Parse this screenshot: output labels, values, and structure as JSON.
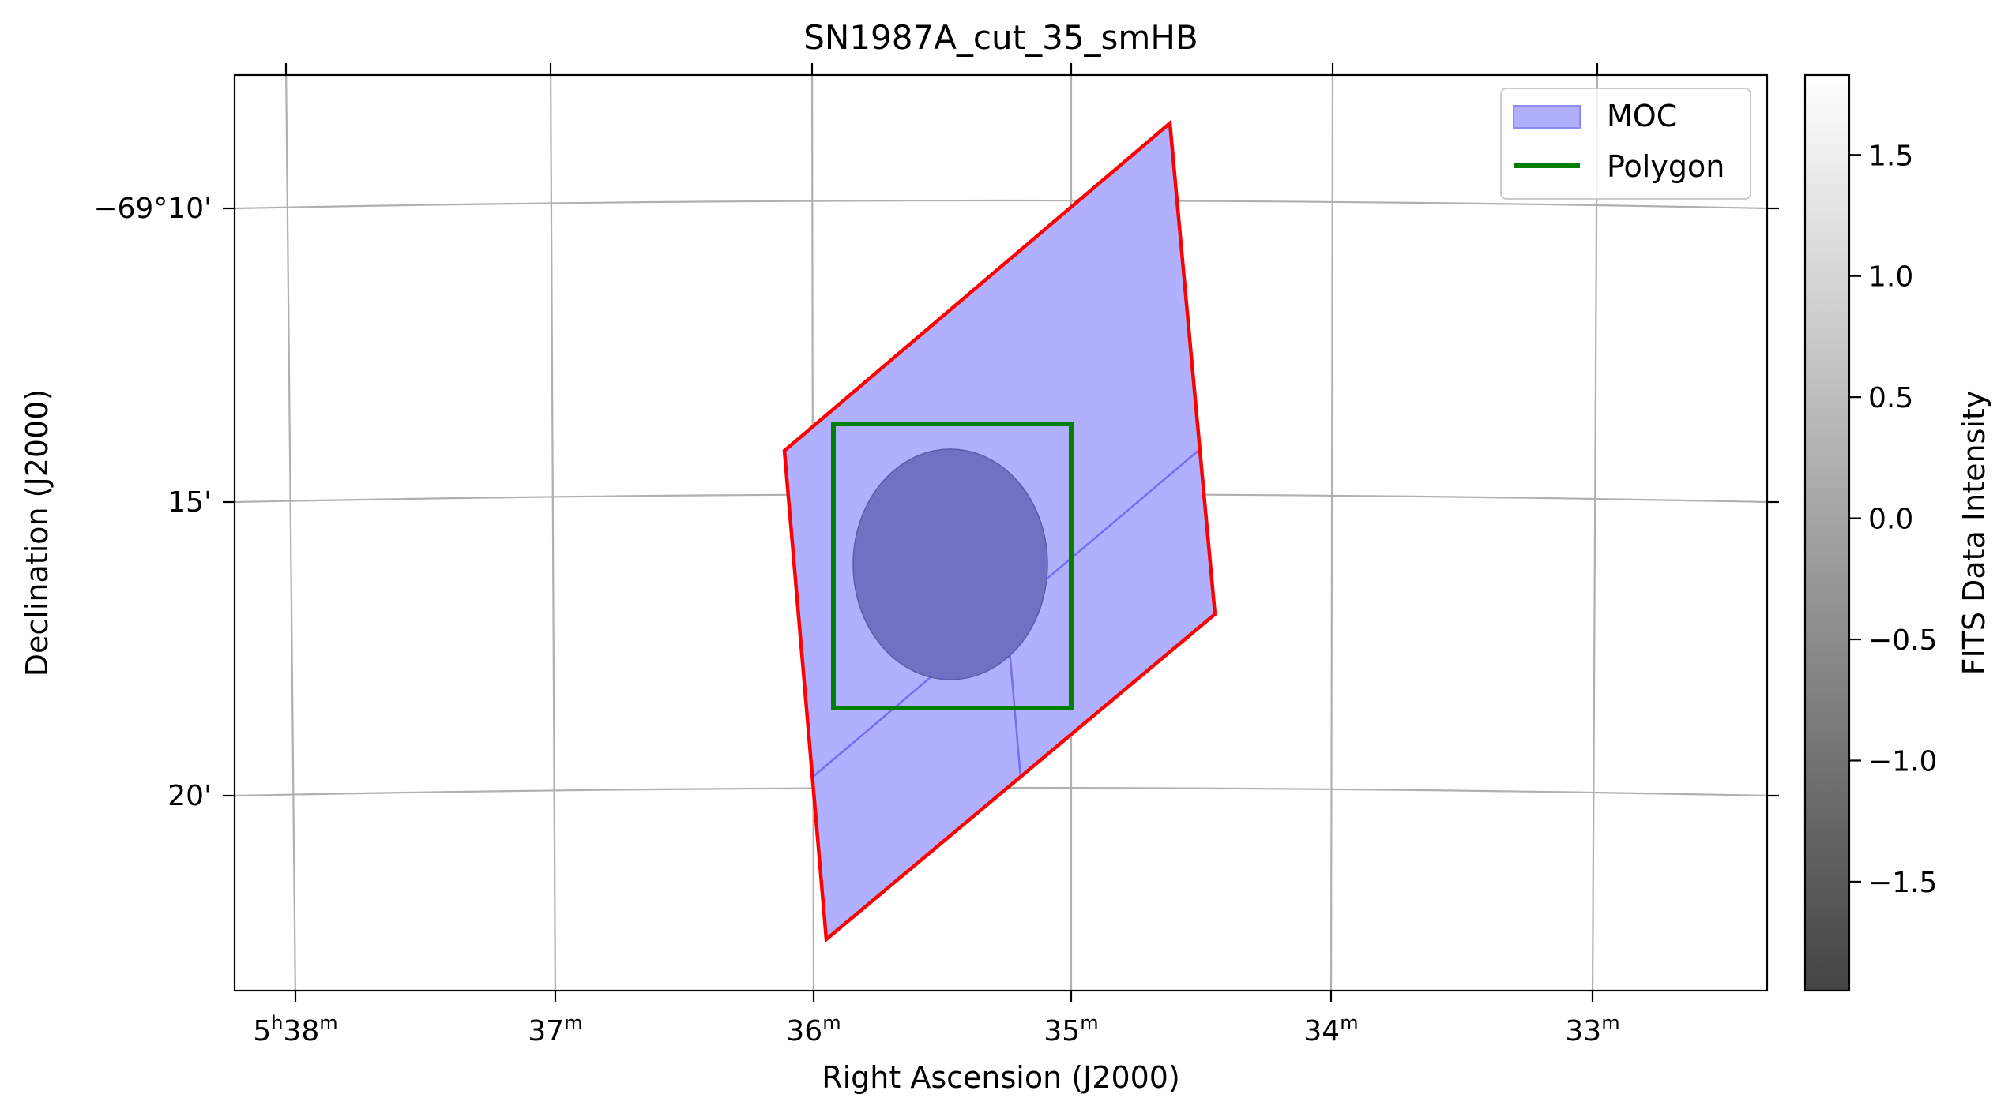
{
  "chart_data": {
    "type": "sky-map",
    "title": "SN1987A_cut_35_smHB",
    "xlabel": "Right Ascension (J2000)",
    "ylabel": "Declination (J2000)",
    "grid": true,
    "legend_position": "top-right",
    "x_ticks": [
      {
        "h": "5",
        "m": "38",
        "show_h": true
      },
      {
        "h": "5",
        "m": "37",
        "show_h": false
      },
      {
        "h": "5",
        "m": "36",
        "show_h": false
      },
      {
        "h": "5",
        "m": "35",
        "show_h": false
      },
      {
        "h": "5",
        "m": "34",
        "show_h": false
      },
      {
        "h": "5",
        "m": "33",
        "show_h": false
      }
    ],
    "y_ticks": [
      "−69°10'",
      "15'",
      "20'"
    ],
    "legend": [
      {
        "label": "MOC",
        "kind": "patch",
        "color": "#b0b0ff"
      },
      {
        "label": "Polygon",
        "kind": "line",
        "color": "#008000"
      }
    ],
    "series": [
      {
        "name": "MOC",
        "kind": "filled-region",
        "fill": "#b0b0ff",
        "outline": "#ff0000"
      },
      {
        "name": "Polygon",
        "kind": "rectangle",
        "color": "#008000"
      }
    ],
    "colorbar": {
      "label": "FITS Data Intensity",
      "min": -1.95,
      "max": 1.83,
      "ticks": [
        1.5,
        1.0,
        0.5,
        0.0,
        -0.5,
        -1.0,
        -1.5
      ],
      "tick_labels": [
        "1.5",
        "1.0",
        "0.5",
        "0.0",
        "−0.5",
        "−1.0",
        "−1.5"
      ],
      "colormap": [
        "#444444",
        "#ffffff"
      ]
    }
  }
}
